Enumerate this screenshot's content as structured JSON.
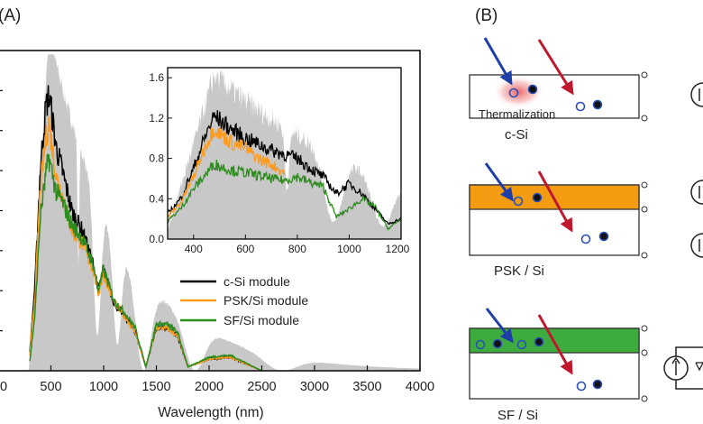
{
  "panels": {
    "a_label": "(A)",
    "b_label": "(B)"
  },
  "colors": {
    "solar": "#c8c8c8",
    "c_si": "#000000",
    "psk": "#ff9a1a",
    "sf": "#2e8b1e",
    "psk_layer": "#f39c12",
    "sf_layer": "#3eab3e",
    "arrow_blue": "#1f3fa8",
    "arrow_red": "#c0182f",
    "therm_glow": "#e05050",
    "hole": "#2c4fb8"
  },
  "chart_data": [
    {
      "type": "area",
      "title": "",
      "xlabel": "Wavelength (nm)",
      "ylabel": "",
      "xlim": [
        0,
        4000
      ],
      "ylim": [
        0,
        1.65
      ],
      "x_ticks": [
        "0",
        "500",
        "1000",
        "1500",
        "2000",
        "2500",
        "3000",
        "3500",
        "4000"
      ],
      "legend_position": "center-right",
      "series": [
        {
          "name": "c-Si module",
          "x": [
            300,
            350,
            400,
            450,
            480,
            500,
            550,
            600,
            700,
            800,
            900,
            950,
            1000,
            1100,
            1200,
            1300,
            1400,
            1500,
            1600,
            1700,
            1800,
            2000,
            2200,
            2500
          ],
          "values": [
            0.1,
            0.45,
            1.05,
            1.35,
            1.42,
            1.36,
            1.15,
            1.05,
            0.82,
            0.72,
            0.55,
            0.42,
            0.52,
            0.35,
            0.28,
            0.2,
            0.02,
            0.22,
            0.22,
            0.18,
            0.02,
            0.06,
            0.07,
            0.0
          ]
        },
        {
          "name": "PSK/Si module",
          "x": [
            300,
            350,
            400,
            450,
            480,
            500,
            550,
            600,
            700,
            800,
            900,
            950,
            1000,
            1100,
            1200,
            1300,
            1400,
            1500,
            1600,
            1700,
            1800,
            2000,
            2200,
            2500
          ],
          "values": [
            0.08,
            0.4,
            0.95,
            1.18,
            1.28,
            1.2,
            1.0,
            0.92,
            0.72,
            0.65,
            0.52,
            0.4,
            0.5,
            0.35,
            0.28,
            0.2,
            0.02,
            0.22,
            0.22,
            0.18,
            0.02,
            0.06,
            0.07,
            0.0
          ]
        },
        {
          "name": "SF/Si module",
          "x": [
            300,
            350,
            400,
            450,
            480,
            500,
            550,
            600,
            700,
            800,
            900,
            950,
            1000,
            1100,
            1200,
            1300,
            1400,
            1500,
            1600,
            1700,
            1800,
            2000,
            2200,
            2500
          ],
          "values": [
            0.05,
            0.3,
            0.8,
            1.0,
            1.1,
            1.05,
            0.92,
            0.88,
            0.75,
            0.68,
            0.55,
            0.42,
            0.52,
            0.36,
            0.3,
            0.22,
            0.02,
            0.24,
            0.24,
            0.2,
            0.02,
            0.07,
            0.08,
            0.0
          ]
        }
      ]
    },
    {
      "type": "area",
      "title": "",
      "xlabel": "",
      "ylabel": "",
      "xlim": [
        300,
        1200
      ],
      "ylim": [
        0,
        1.7
      ],
      "x_ticks": [
        "400",
        "600",
        "800",
        "1000",
        "1200"
      ],
      "y_ticks": [
        "0.0",
        "0.4",
        "0.8",
        "1.2",
        "1.6"
      ],
      "series": [
        {
          "name": "c-Si module",
          "x": [
            300,
            350,
            400,
            450,
            480,
            500,
            550,
            600,
            650,
            700,
            750,
            800,
            850,
            900,
            950,
            1000,
            1050,
            1100,
            1150,
            1200
          ],
          "values": [
            0.25,
            0.4,
            0.7,
            1.05,
            1.22,
            1.18,
            1.08,
            1.0,
            0.94,
            0.88,
            0.84,
            0.8,
            0.7,
            0.62,
            0.45,
            0.55,
            0.45,
            0.3,
            0.15,
            0.2
          ]
        },
        {
          "name": "PSK/Si module",
          "x": [
            300,
            350,
            400,
            450,
            480,
            500,
            550,
            600,
            650,
            700,
            750
          ],
          "values": [
            0.22,
            0.36,
            0.62,
            0.95,
            1.1,
            1.05,
            0.95,
            0.9,
            0.8,
            0.74,
            0.66
          ]
        },
        {
          "name": "SF/Si module",
          "x": [
            300,
            350,
            400,
            450,
            480,
            500,
            550,
            600,
            650,
            700,
            750,
            800,
            850,
            900,
            950,
            1000,
            1050,
            1100,
            1150,
            1200
          ],
          "values": [
            0.18,
            0.3,
            0.5,
            0.65,
            0.75,
            0.72,
            0.68,
            0.66,
            0.63,
            0.6,
            0.58,
            0.62,
            0.56,
            0.52,
            0.22,
            0.3,
            0.4,
            0.32,
            0.1,
            0.2
          ]
        }
      ]
    }
  ],
  "devices": [
    {
      "label": "c-Si",
      "annotation": "Thermalization",
      "layer": "none"
    },
    {
      "label": "PSK / Si",
      "layer": "psk"
    },
    {
      "label": "SF / Si",
      "layer": "sf"
    }
  ]
}
